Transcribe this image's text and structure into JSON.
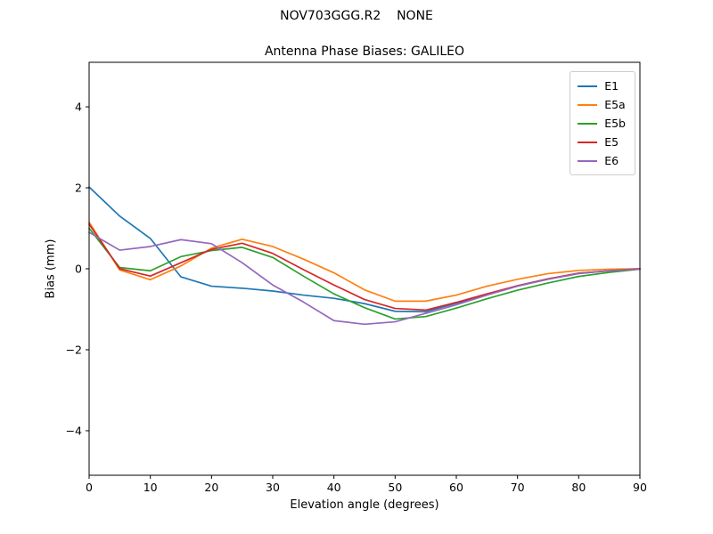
{
  "figure": {
    "suptitle": "NOV703GGG.R2    NONE"
  },
  "chart_data": {
    "type": "line",
    "title": "Antenna Phase Biases: GALILEO",
    "xlabel": "Elevation angle (degrees)",
    "ylabel": "Bias (mm)",
    "xlim": [
      0,
      90
    ],
    "ylim": [
      -5.1,
      5.1
    ],
    "xticks": [
      0,
      10,
      20,
      30,
      40,
      50,
      60,
      70,
      80,
      90
    ],
    "yticks": [
      -4,
      -2,
      0,
      2,
      4
    ],
    "grid": false,
    "legend_position": "upper right",
    "x": [
      0,
      5,
      10,
      15,
      20,
      25,
      30,
      35,
      40,
      45,
      50,
      55,
      60,
      65,
      70,
      75,
      80,
      85,
      90
    ],
    "series": [
      {
        "name": "E1",
        "color": "#1f77b4",
        "values": [
          2.02,
          1.3,
          0.75,
          -0.2,
          -0.43,
          -0.48,
          -0.55,
          -0.65,
          -0.73,
          -0.86,
          -1.05,
          -1.06,
          -0.85,
          -0.64,
          -0.42,
          -0.25,
          -0.11,
          -0.05,
          -0.01
        ]
      },
      {
        "name": "E5a",
        "color": "#ff7f0e",
        "values": [
          1.15,
          -0.03,
          -0.27,
          0.07,
          0.51,
          0.73,
          0.55,
          0.24,
          -0.1,
          -0.52,
          -0.8,
          -0.8,
          -0.65,
          -0.43,
          -0.26,
          -0.12,
          -0.04,
          -0.01,
          0.0
        ]
      },
      {
        "name": "E5b",
        "color": "#2ca02c",
        "values": [
          1.0,
          0.03,
          -0.05,
          0.3,
          0.45,
          0.53,
          0.28,
          -0.18,
          -0.62,
          -0.96,
          -1.24,
          -1.18,
          -0.97,
          -0.74,
          -0.53,
          -0.35,
          -0.19,
          -0.09,
          -0.01
        ]
      },
      {
        "name": "E5",
        "color": "#d62728",
        "values": [
          1.1,
          0.0,
          -0.18,
          0.15,
          0.48,
          0.63,
          0.38,
          -0.02,
          -0.4,
          -0.76,
          -0.98,
          -1.02,
          -0.83,
          -0.62,
          -0.42,
          -0.25,
          -0.11,
          -0.05,
          0.0
        ]
      },
      {
        "name": "E6",
        "color": "#9467bd",
        "values": [
          0.9,
          0.46,
          0.55,
          0.72,
          0.62,
          0.15,
          -0.4,
          -0.82,
          -1.28,
          -1.37,
          -1.31,
          -1.1,
          -0.89,
          -0.65,
          -0.43,
          -0.26,
          -0.12,
          -0.05,
          -0.01
        ]
      }
    ]
  }
}
